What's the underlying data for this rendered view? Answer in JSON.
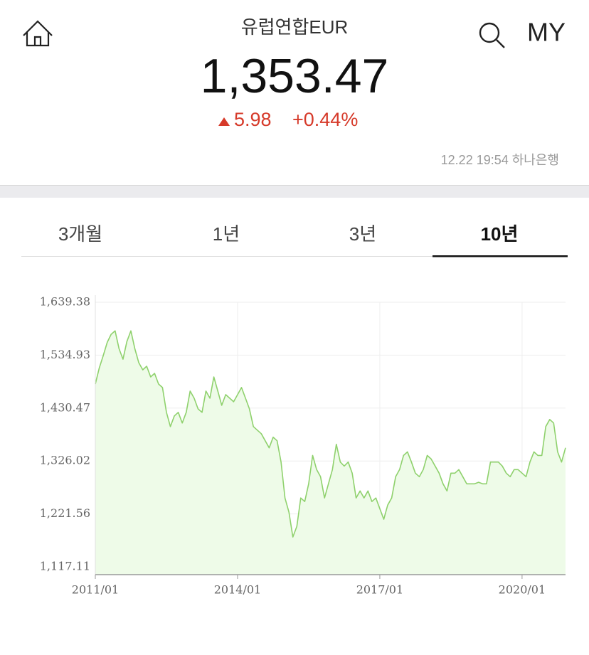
{
  "header": {
    "title": "유럽연합EUR",
    "my_label": "MY",
    "price": "1,353.47",
    "change": "5.98",
    "change_pct": "+0.44%",
    "timestamp": "12.22 19:54 하나은행"
  },
  "tabs": [
    "3개월",
    "1년",
    "3년",
    "10년"
  ],
  "selected_tab": 3,
  "chart_data": {
    "type": "area",
    "x": [
      "2011/01",
      "2011/02",
      "2011/03",
      "2011/04",
      "2011/05",
      "2011/06",
      "2011/07",
      "2011/08",
      "2011/09",
      "2011/10",
      "2011/11",
      "2011/12",
      "2012/01",
      "2012/02",
      "2012/03",
      "2012/04",
      "2012/05",
      "2012/06",
      "2012/07",
      "2012/08",
      "2012/09",
      "2012/10",
      "2012/11",
      "2012/12",
      "2013/01",
      "2013/02",
      "2013/03",
      "2013/04",
      "2013/05",
      "2013/06",
      "2013/07",
      "2013/08",
      "2013/09",
      "2013/10",
      "2013/11",
      "2013/12",
      "2014/01",
      "2014/02",
      "2014/03",
      "2014/04",
      "2014/05",
      "2014/06",
      "2014/07",
      "2014/08",
      "2014/09",
      "2014/10",
      "2014/11",
      "2014/12",
      "2015/01",
      "2015/02",
      "2015/03",
      "2015/04",
      "2015/05",
      "2015/06",
      "2015/07",
      "2015/08",
      "2015/09",
      "2015/10",
      "2015/11",
      "2015/12",
      "2016/01",
      "2016/02",
      "2016/03",
      "2016/04",
      "2016/05",
      "2016/06",
      "2016/07",
      "2016/08",
      "2016/09",
      "2016/10",
      "2016/11",
      "2016/12",
      "2017/01",
      "2017/02",
      "2017/03",
      "2017/04",
      "2017/05",
      "2017/06",
      "2017/07",
      "2017/08",
      "2017/09",
      "2017/10",
      "2017/11",
      "2017/12",
      "2018/01",
      "2018/02",
      "2018/03",
      "2018/04",
      "2018/05",
      "2018/06",
      "2018/07",
      "2018/08",
      "2018/09",
      "2018/10",
      "2018/11",
      "2018/12",
      "2019/01",
      "2019/02",
      "2019/03",
      "2019/04",
      "2019/05",
      "2019/06",
      "2019/07",
      "2019/08",
      "2019/09",
      "2019/10",
      "2019/11",
      "2019/12",
      "2020/01",
      "2020/02",
      "2020/03",
      "2020/04",
      "2020/05",
      "2020/06",
      "2020/07",
      "2020/08",
      "2020/09",
      "2020/10",
      "2020/11",
      "2020/12"
    ],
    "values": [
      1478,
      1510,
      1534,
      1560,
      1576,
      1583,
      1548,
      1527,
      1562,
      1583,
      1548,
      1520,
      1506,
      1513,
      1492,
      1499,
      1478,
      1471,
      1422,
      1394,
      1415,
      1422,
      1401,
      1422,
      1464,
      1450,
      1429,
      1422,
      1464,
      1450,
      1492,
      1464,
      1436,
      1457,
      1450,
      1443,
      1457,
      1471,
      1450,
      1429,
      1394,
      1387,
      1380,
      1366,
      1352,
      1373,
      1366,
      1324,
      1253,
      1225,
      1176,
      1197,
      1253,
      1246,
      1281,
      1337,
      1309,
      1295,
      1253,
      1281,
      1309,
      1359,
      1324,
      1316,
      1324,
      1302,
      1253,
      1267,
      1253,
      1267,
      1246,
      1253,
      1232,
      1211,
      1239,
      1253,
      1295,
      1309,
      1337,
      1344,
      1324,
      1302,
      1295,
      1309,
      1337,
      1330,
      1316,
      1302,
      1281,
      1267,
      1302,
      1302,
      1309,
      1295,
      1281,
      1281,
      1281,
      1284,
      1281,
      1281,
      1324,
      1324,
      1324,
      1316,
      1302,
      1295,
      1309,
      1309,
      1302,
      1295,
      1324,
      1344,
      1337,
      1337,
      1394,
      1408,
      1401,
      1344,
      1324,
      1352
    ],
    "color": "#8fd16d",
    "fill_color": "#eefbe8",
    "xlim": [
      "2011/01",
      "2020/12"
    ],
    "xticks": [
      "2011/01",
      "2014/01",
      "2017/01",
      "2020/01"
    ],
    "ylim": [
      1101.7,
      1639.38
    ],
    "yticks": [
      {
        "value": 1117.11,
        "label": "1,117.11"
      },
      {
        "value": 1221.56,
        "label": "1,221.56"
      },
      {
        "value": 1326.02,
        "label": "1,326.02"
      },
      {
        "value": 1430.47,
        "label": "1,430.47"
      },
      {
        "value": 1534.93,
        "label": "1,534.93"
      },
      {
        "value": 1639.38,
        "label": "1,639.38"
      }
    ],
    "grid": true
  }
}
